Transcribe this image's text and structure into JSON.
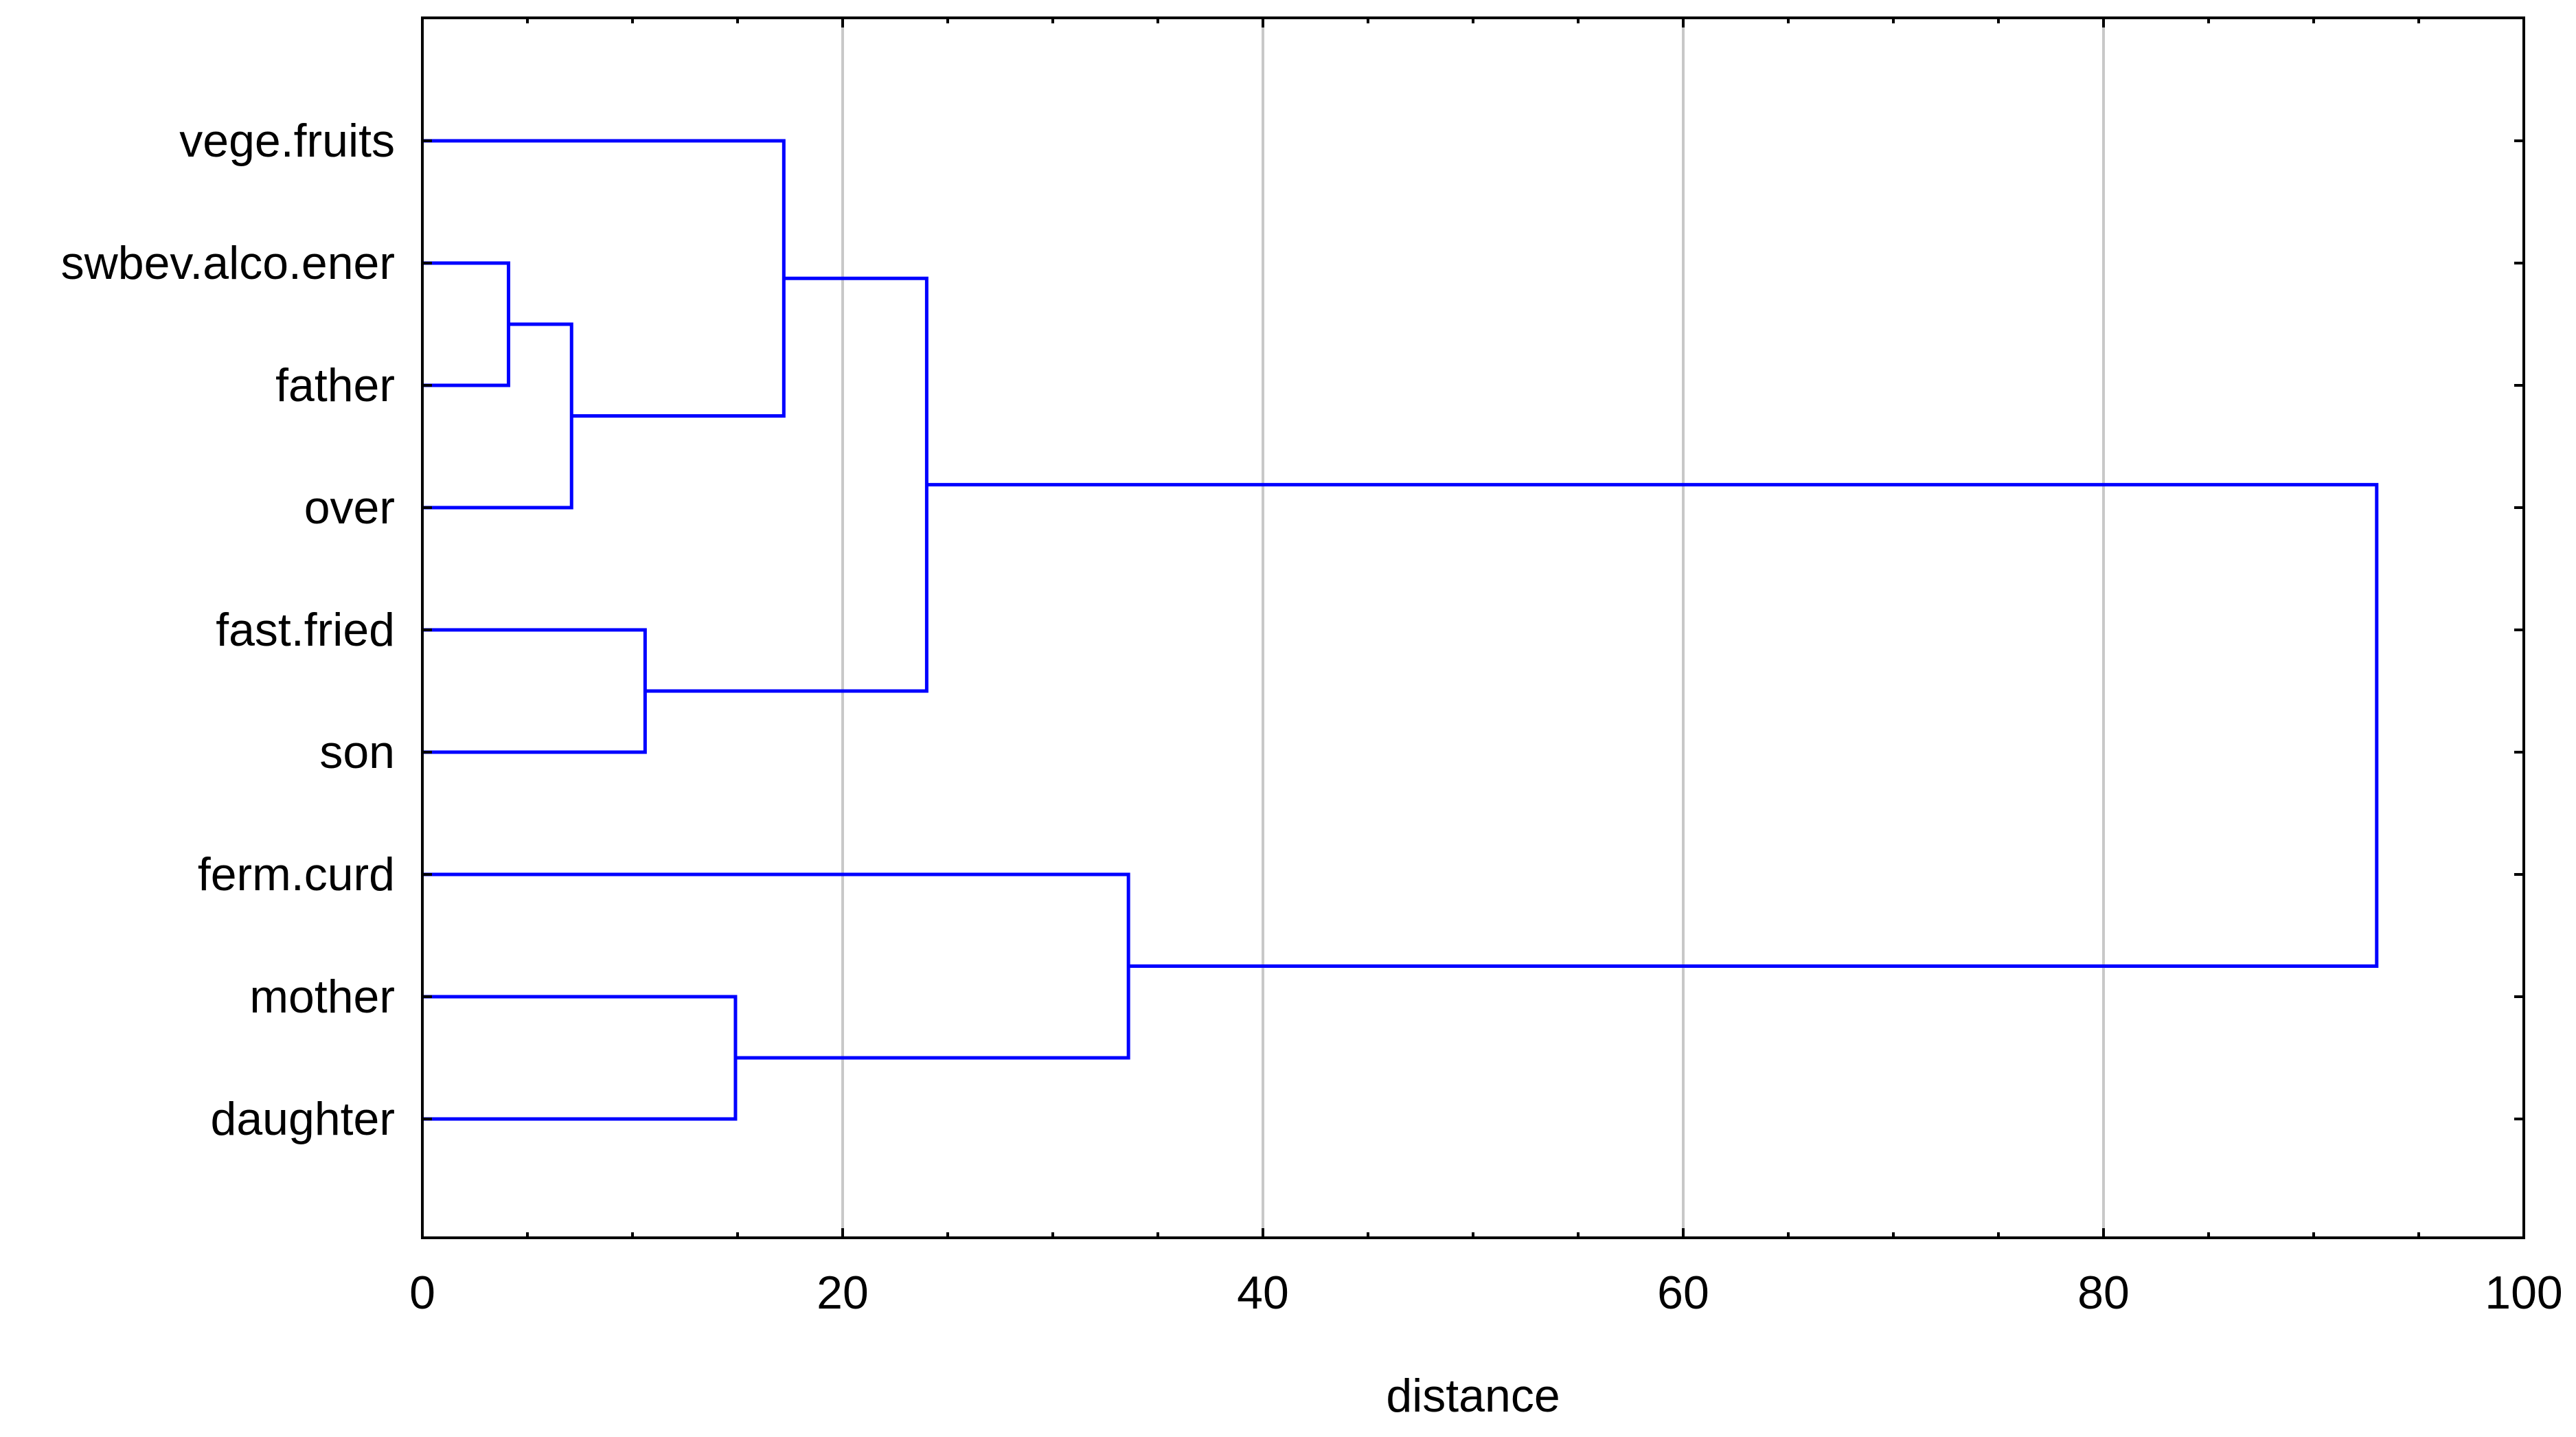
{
  "chart_data": {
    "type": "dendrogram",
    "orientation": "horizontal",
    "xlabel": "distance",
    "xlim": [
      0,
      100
    ],
    "xticks": [
      0,
      20,
      40,
      60,
      80,
      100
    ],
    "grid": true,
    "link_color": "#0000ff",
    "grid_color": "#c8c8c8",
    "leaves": [
      "vege.fruits",
      "swbev.alco.ener",
      "father",
      "over",
      "fast.fried",
      "son",
      "ferm.curd",
      "mother",
      "daughter"
    ],
    "merges": [
      {
        "id": "c1",
        "children": [
          "swbev.alco.ener",
          "father"
        ],
        "distance": 4.1
      },
      {
        "id": "c2",
        "children": [
          "c1",
          "over"
        ],
        "distance": 7.1
      },
      {
        "id": "c3",
        "children": [
          "fast.fried",
          "son"
        ],
        "distance": 10.6
      },
      {
        "id": "c4",
        "children": [
          "mother",
          "daughter"
        ],
        "distance": 14.9
      },
      {
        "id": "c5",
        "children": [
          "vege.fruits",
          "c2"
        ],
        "distance": 17.2
      },
      {
        "id": "c6",
        "children": [
          "c5",
          "c3"
        ],
        "distance": 24.0
      },
      {
        "id": "c7",
        "children": [
          "ferm.curd",
          "c4"
        ],
        "distance": 33.6
      },
      {
        "id": "c8",
        "children": [
          "c6",
          "c7"
        ],
        "distance": 93.0
      }
    ]
  }
}
